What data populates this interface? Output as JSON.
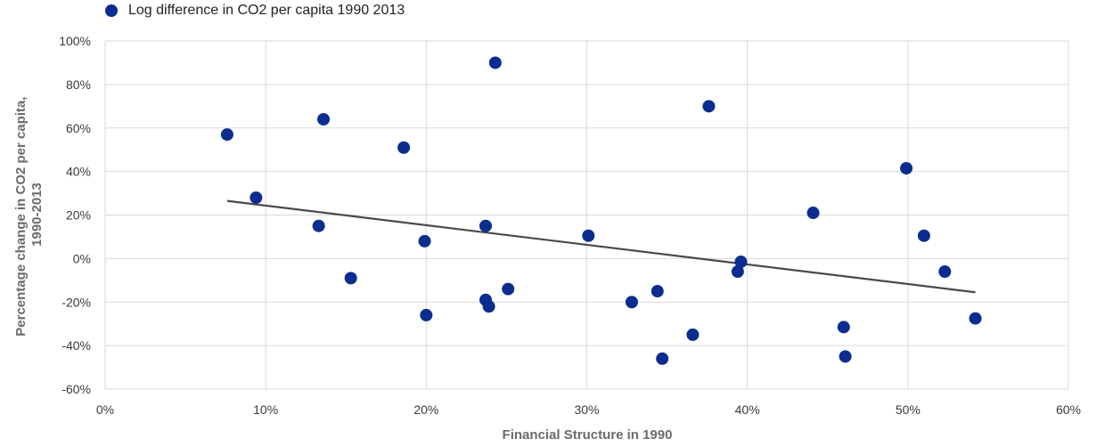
{
  "chart_data": {
    "type": "scatter",
    "legend": {
      "position": "top-left",
      "label": "Log difference in CO2 per capita 1990 2013"
    },
    "xlabel": "Financial Structure in 1990",
    "ylabel_lines": [
      "Percentage change in CO2 per capita,",
      "1990-2013"
    ],
    "xlim": [
      0,
      60
    ],
    "ylim": [
      -60,
      100
    ],
    "x_ticks": [
      0,
      10,
      20,
      30,
      40,
      50,
      60
    ],
    "y_ticks": [
      -60,
      -40,
      -20,
      0,
      20,
      40,
      60,
      80,
      100
    ],
    "x_tick_labels": [
      "0%",
      "10%",
      "20%",
      "30%",
      "40%",
      "50%",
      "60%"
    ],
    "y_tick_labels": [
      "-60%",
      "-40%",
      "-20%",
      "0%",
      "20%",
      "40%",
      "60%",
      "80%",
      "100%"
    ],
    "grid": true,
    "colors": {
      "marker": "#0a2d8f",
      "trendline": "#4a4a4a",
      "grid": "#d9d9d9"
    },
    "series": [
      {
        "name": "Log difference in CO2 per capita 1990 2013",
        "points": [
          [
            7.6,
            57
          ],
          [
            9.4,
            28
          ],
          [
            13.3,
            15
          ],
          [
            13.6,
            64
          ],
          [
            15.3,
            -9
          ],
          [
            18.6,
            51
          ],
          [
            19.9,
            8
          ],
          [
            20.0,
            -26
          ],
          [
            23.7,
            15
          ],
          [
            23.7,
            -19
          ],
          [
            23.9,
            -22
          ],
          [
            24.3,
            90
          ],
          [
            25.1,
            -14
          ],
          [
            30.1,
            10.5
          ],
          [
            32.8,
            -20
          ],
          [
            34.4,
            -15
          ],
          [
            34.7,
            -46
          ],
          [
            36.6,
            -35
          ],
          [
            37.6,
            70
          ],
          [
            39.4,
            -6
          ],
          [
            39.6,
            -1.5
          ],
          [
            44.1,
            21
          ],
          [
            46.0,
            -31.5
          ],
          [
            46.1,
            -45
          ],
          [
            49.9,
            41.5
          ],
          [
            51.0,
            10.5
          ],
          [
            52.3,
            -6
          ],
          [
            54.2,
            -27.5
          ]
        ]
      }
    ],
    "trendline": {
      "x": [
        7.6,
        54.2
      ],
      "y": [
        26.5,
        -15.5
      ]
    }
  }
}
